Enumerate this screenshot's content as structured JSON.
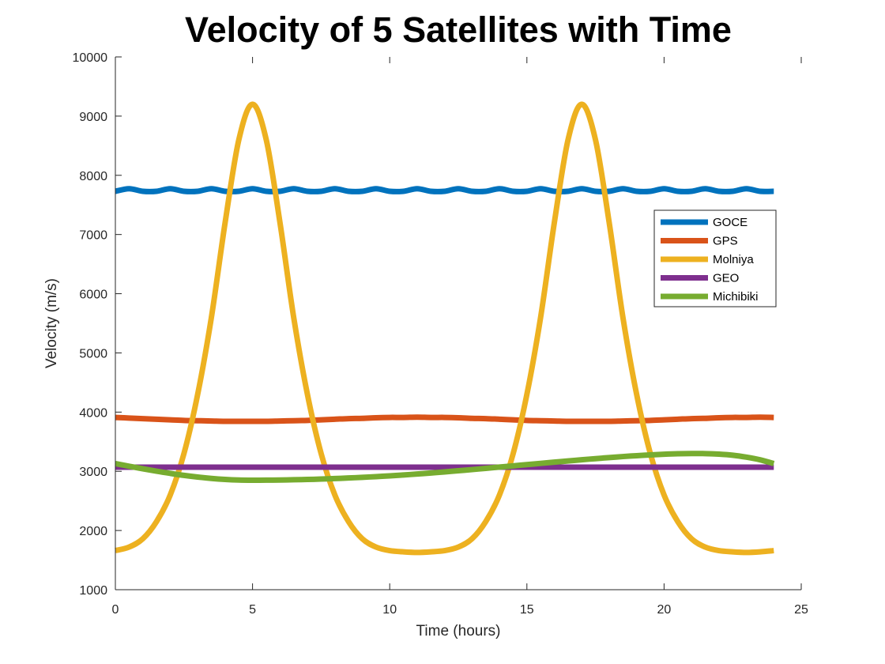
{
  "chart_data": {
    "type": "line",
    "title": "Velocity of 5 Satellites with Time",
    "xlabel": "Time (hours)",
    "ylabel": "Velocity (m/s)",
    "xlim": [
      0,
      25
    ],
    "ylim": [
      1000,
      10000
    ],
    "xticks": [
      0,
      5,
      10,
      15,
      20,
      25
    ],
    "yticks": [
      1000,
      2000,
      3000,
      4000,
      5000,
      6000,
      7000,
      8000,
      9000,
      10000
    ],
    "grid": false,
    "legend_position": "upper-right",
    "x": [
      0,
      0.5,
      1,
      1.5,
      2,
      2.5,
      3,
      3.5,
      4,
      4.5,
      5,
      5.5,
      6,
      6.5,
      7,
      7.5,
      8,
      8.5,
      9,
      9.5,
      10,
      10.5,
      11,
      11.5,
      12,
      12.5,
      13,
      13.5,
      14,
      14.5,
      15,
      15.5,
      16,
      16.5,
      17,
      17.5,
      18,
      18.5,
      19,
      19.5,
      20,
      20.5,
      21,
      21.5,
      22,
      22.5,
      23,
      23.5,
      24
    ],
    "series": [
      {
        "name": "GOCE",
        "color": "#0072BD",
        "values": [
          7730,
          7774,
          7730,
          7730,
          7774,
          7730,
          7730,
          7774,
          7730,
          7730,
          7774,
          7730,
          7730,
          7774,
          7730,
          7730,
          7774,
          7730,
          7730,
          7774,
          7730,
          7730,
          7774,
          7730,
          7730,
          7774,
          7730,
          7730,
          7774,
          7730,
          7730,
          7774,
          7730,
          7730,
          7774,
          7730,
          7730,
          7774,
          7730,
          7730,
          7774,
          7730,
          7730,
          7774,
          7730,
          7730,
          7774,
          7730,
          7730
        ]
      },
      {
        "name": "GPS",
        "color": "#D95319",
        "values": [
          3910,
          3900,
          3890,
          3880,
          3870,
          3860,
          3855,
          3850,
          3845,
          3845,
          3845,
          3845,
          3850,
          3855,
          3860,
          3870,
          3880,
          3890,
          3895,
          3905,
          3910,
          3910,
          3915,
          3910,
          3910,
          3905,
          3895,
          3890,
          3880,
          3870,
          3860,
          3855,
          3850,
          3845,
          3845,
          3845,
          3845,
          3850,
          3855,
          3860,
          3870,
          3880,
          3890,
          3895,
          3905,
          3910,
          3910,
          3915,
          3910
        ]
      },
      {
        "name": "Molniya",
        "color": "#EDB120",
        "values": [
          1660,
          1720,
          1860,
          2150,
          2600,
          3300,
          4300,
          5600,
          7200,
          8600,
          9200,
          8600,
          7200,
          5600,
          4300,
          3300,
          2600,
          2150,
          1860,
          1720,
          1660,
          1640,
          1630,
          1640,
          1660,
          1720,
          1860,
          2150,
          2600,
          3300,
          4300,
          5600,
          7200,
          8600,
          9200,
          8600,
          7200,
          5600,
          4300,
          3300,
          2600,
          2150,
          1860,
          1720,
          1660,
          1640,
          1630,
          1640,
          1660
        ]
      },
      {
        "name": "GEO",
        "color": "#7E2F8E",
        "values": [
          3070,
          3070,
          3070,
          3070,
          3070,
          3070,
          3070,
          3070,
          3070,
          3070,
          3070,
          3070,
          3070,
          3070,
          3070,
          3070,
          3070,
          3070,
          3070,
          3070,
          3070,
          3070,
          3070,
          3070,
          3070,
          3070,
          3070,
          3070,
          3070,
          3070,
          3070,
          3070,
          3070,
          3070,
          3070,
          3070,
          3070,
          3070,
          3070,
          3070,
          3070,
          3070,
          3070,
          3070,
          3070,
          3070,
          3070,
          3070,
          3070
        ]
      },
      {
        "name": "Michibiki",
        "color": "#77AC30",
        "values": [
          3130,
          3086,
          3043,
          3002,
          2965,
          2931,
          2903,
          2880,
          2863,
          2853,
          2850,
          2851,
          2853,
          2857,
          2862,
          2869,
          2877,
          2887,
          2898,
          2910,
          2923,
          2938,
          2954,
          2971,
          2990,
          3009,
          3029,
          3050,
          3071,
          3092,
          3113,
          3134,
          3155,
          3175,
          3195,
          3214,
          3232,
          3249,
          3264,
          3277,
          3288,
          3296,
          3300,
          3299,
          3290,
          3272,
          3239,
          3194,
          3130
        ]
      }
    ]
  }
}
